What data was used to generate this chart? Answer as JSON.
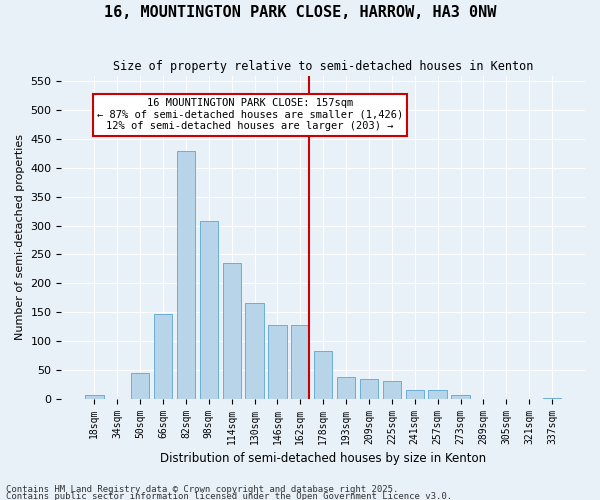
{
  "title": "16, MOUNTINGTON PARK CLOSE, HARROW, HA3 0NW",
  "subtitle": "Size of property relative to semi-detached houses in Kenton",
  "xlabel": "Distribution of semi-detached houses by size in Kenton",
  "ylabel": "Number of semi-detached properties",
  "bin_labels": [
    "18sqm",
    "34sqm",
    "50sqm",
    "66sqm",
    "82sqm",
    "98sqm",
    "114sqm",
    "130sqm",
    "146sqm",
    "162sqm",
    "178sqm",
    "193sqm",
    "209sqm",
    "225sqm",
    "241sqm",
    "257sqm",
    "273sqm",
    "289sqm",
    "305sqm",
    "321sqm",
    "337sqm"
  ],
  "bar_heights": [
    7,
    0,
    45,
    147,
    430,
    308,
    235,
    165,
    127,
    127,
    83,
    37,
    34,
    30,
    15,
    15,
    7,
    0,
    0,
    0,
    2
  ],
  "bar_color": "#b8d4e8",
  "bar_edgecolor": "#6aaed6",
  "property_size": 157,
  "property_bin_index": 9,
  "vline_color": "#cc0000",
  "annotation_title": "16 MOUNTINGTON PARK CLOSE: 157sqm",
  "annotation_line1": "← 87% of semi-detached houses are smaller (1,426)",
  "annotation_line2": "12% of semi-detached houses are larger (203) →",
  "annotation_box_color": "#cc0000",
  "ylim": [
    0,
    560
  ],
  "yticks": [
    0,
    50,
    100,
    150,
    200,
    250,
    300,
    350,
    400,
    450,
    500,
    550
  ],
  "footnote1": "Contains HM Land Registry data © Crown copyright and database right 2025.",
  "footnote2": "Contains public sector information licensed under the Open Government Licence v3.0.",
  "bg_color": "#e8f0f8",
  "plot_bg_color": "#e8f0f8"
}
